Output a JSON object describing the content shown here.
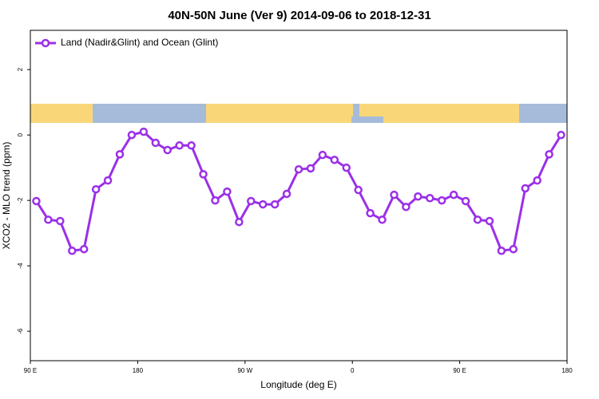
{
  "chart_data": {
    "type": "line",
    "title": "40N-50N June (Ver 9)   2014-09-06 to 2018-12-31",
    "x_label": "Longitude (deg E)",
    "y_label": "XCO2 - MLO trend (ppm)",
    "x": [
      95,
      105,
      115,
      125,
      135,
      145,
      155,
      165,
      175,
      185,
      195,
      205,
      215,
      225,
      235,
      245,
      255,
      265,
      275,
      285,
      295,
      305,
      315,
      325,
      335,
      345,
      355,
      365,
      375,
      385,
      395,
      405,
      415,
      425,
      435,
      445,
      455,
      465,
      475,
      485,
      495,
      505,
      515,
      525,
      535
    ],
    "series": [
      {
        "name": "Land (Nadir&Glint) and Ocean (Glint)",
        "color": "#9b30e8",
        "values": [
          -2.02,
          -2.59,
          -2.63,
          -3.54,
          -3.49,
          -1.66,
          -1.39,
          -0.59,
          0.0,
          0.1,
          -0.24,
          -0.46,
          -0.32,
          -0.32,
          -1.2,
          -2.0,
          -1.73,
          -2.66,
          -2.02,
          -2.12,
          -2.12,
          -1.8,
          -1.05,
          -1.02,
          -0.61,
          -0.76,
          -1.0,
          -1.68,
          -2.39,
          -2.59,
          -1.83,
          -2.2,
          -1.88,
          -1.93,
          -2.0,
          -1.83,
          -2.02,
          -2.59,
          -2.63,
          -3.54,
          -3.49,
          -1.63,
          -1.39,
          -0.59,
          0.0
        ]
      }
    ],
    "xlim": [
      90,
      540
    ],
    "xticks": [
      {
        "value": 90,
        "label": "90 E"
      },
      180,
      {
        "value": 270,
        "label": "90 W"
      },
      {
        "value": 360,
        "label": "0"
      },
      {
        "value": 450,
        "label": "90 E"
      },
      {
        "value": 540,
        "label": "180"
      }
    ],
    "ylim": [
      -6.9,
      3.2
    ],
    "yticks": [
      -6,
      -4,
      -2,
      0,
      2
    ],
    "legend": "top-left"
  }
}
